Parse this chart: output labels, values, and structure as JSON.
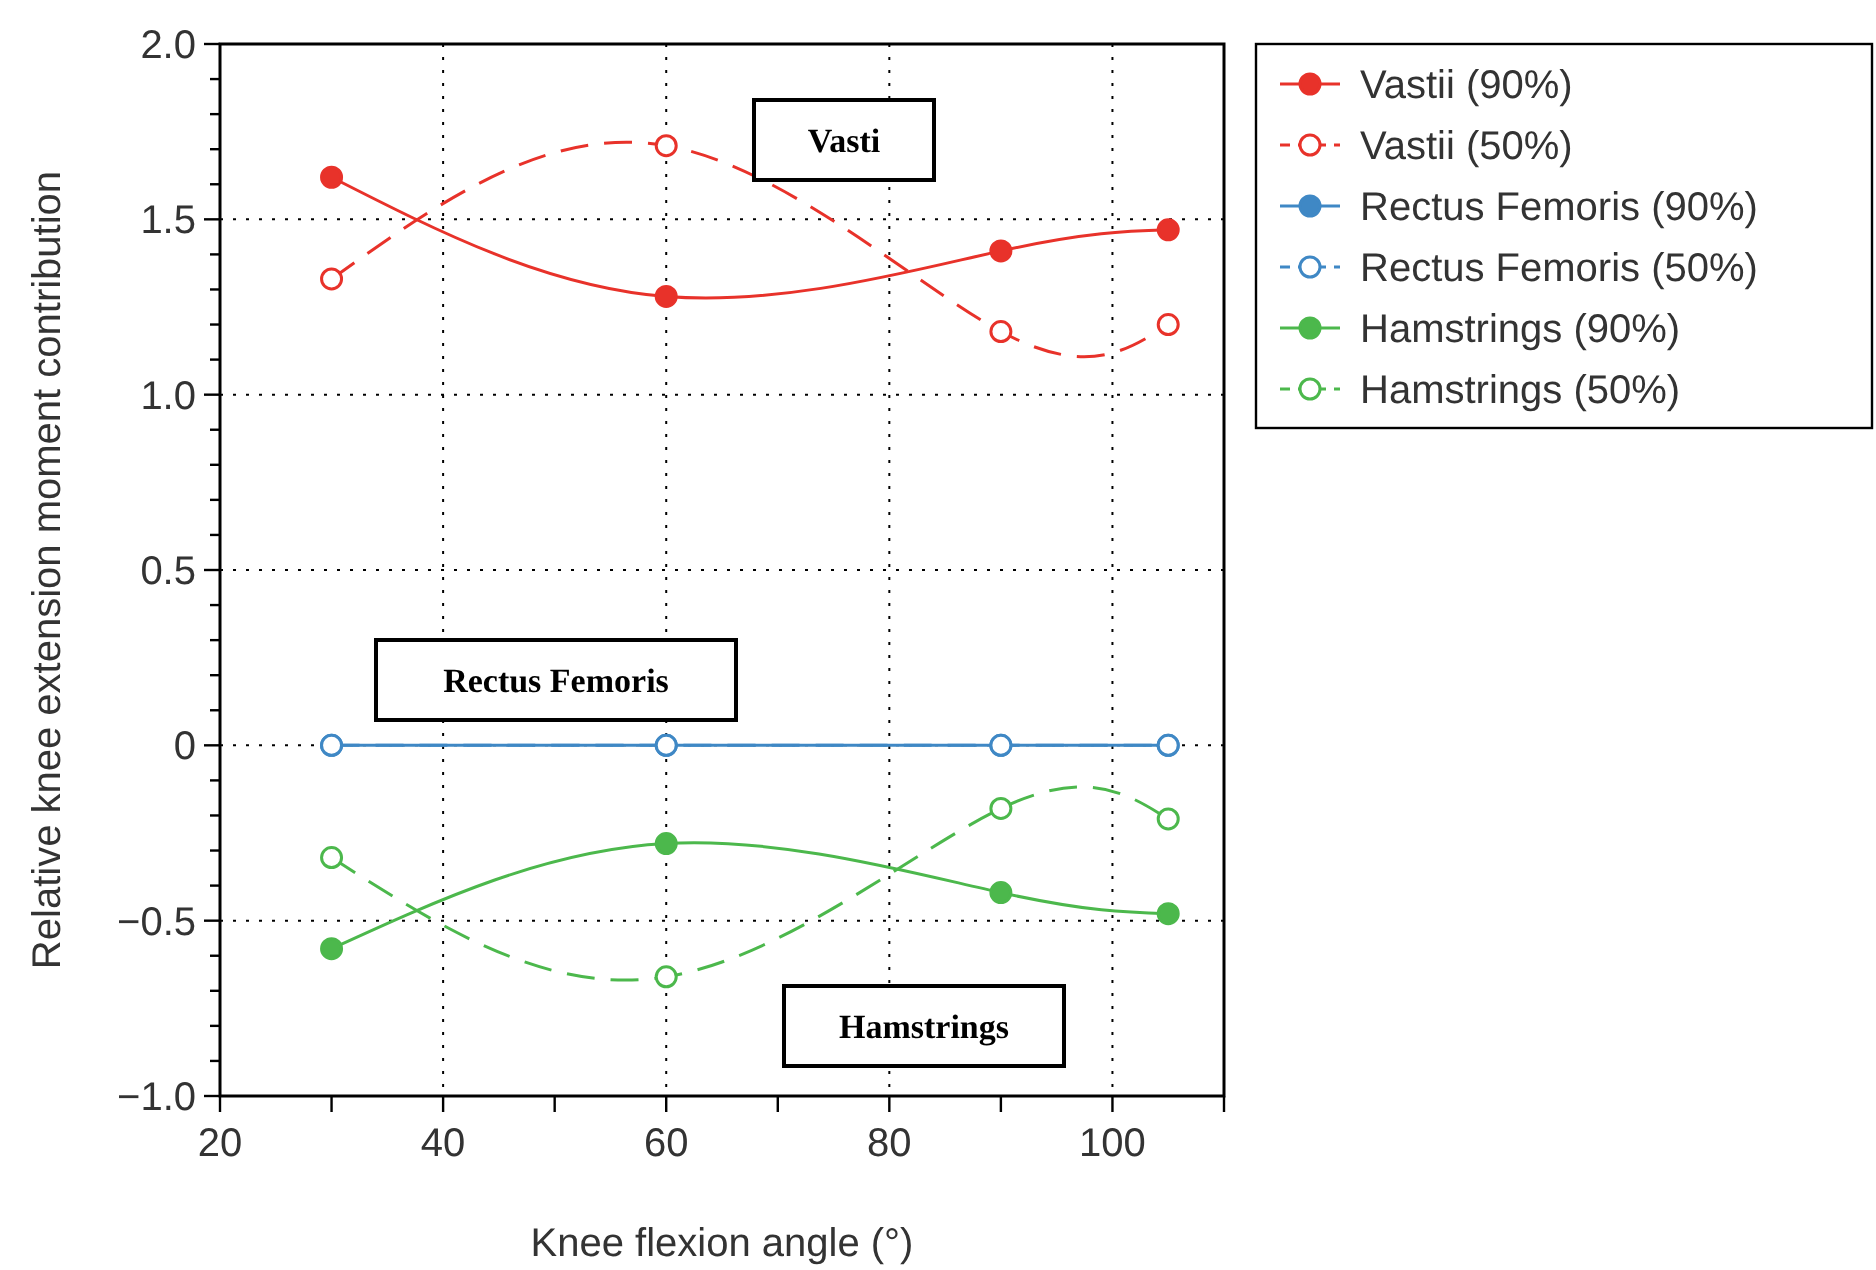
{
  "chart_data": {
    "type": "line",
    "xlabel": "Knee flexion angle (°)",
    "ylabel": "Relative knee extension moment contribution",
    "x": [
      30,
      60,
      90,
      105
    ],
    "series": [
      {
        "name": "Vastii (90%)",
        "color": "#e8322a",
        "values": [
          1.62,
          1.28,
          1.41,
          1.47
        ],
        "line_style": "solid"
      },
      {
        "name": "Vastii (50%)",
        "color": "#e8322a",
        "values": [
          1.33,
          1.71,
          1.18,
          1.2
        ],
        "line_style": "dashed"
      },
      {
        "name": "Rectus Femoris (90%)",
        "color": "#3f88c5",
        "values": [
          0,
          0,
          0,
          0
        ],
        "line_style": "solid"
      },
      {
        "name": "Rectus Femoris (50%)",
        "color": "#3f88c5",
        "values": [
          0,
          0,
          0,
          0
        ],
        "line_style": "dashed"
      },
      {
        "name": "Hamstrings (90%)",
        "color": "#4cb84c",
        "values": [
          -0.58,
          -0.28,
          -0.42,
          -0.48
        ],
        "line_style": "solid"
      },
      {
        "name": "Hamstrings (50%)",
        "color": "#4cb84c",
        "values": [
          -0.32,
          -0.66,
          -0.18,
          -0.21
        ],
        "line_style": "dashed"
      }
    ],
    "annotations": [
      "Vasti",
      "Rectus Femoris",
      "Hamstrings"
    ],
    "xlim": [
      20,
      110
    ],
    "xticks": [
      20,
      {
        "value": 30,
        "label": null
      },
      40,
      {
        "value": 50,
        "label": null
      },
      60,
      {
        "value": 70,
        "label": null
      },
      80,
      {
        "value": 90,
        "label": null
      },
      100,
      {
        "value": 110,
        "label": null
      }
    ],
    "ylim": [
      -1,
      2
    ],
    "yticks": [
      {
        "value": -1,
        "label": "−1.0"
      },
      {
        "value": -0.9,
        "label": null
      },
      {
        "value": -0.8,
        "label": null
      },
      {
        "value": -0.7,
        "label": null
      },
      {
        "value": -0.6,
        "label": null
      },
      {
        "value": -0.5,
        "label": "−0.5"
      },
      {
        "value": -0.4,
        "label": null
      },
      {
        "value": -0.3,
        "label": null
      },
      {
        "value": -0.2,
        "label": null
      },
      {
        "value": -0.1,
        "label": null
      },
      0,
      {
        "value": 0.1,
        "label": null
      },
      {
        "value": 0.2,
        "label": null
      },
      {
        "value": 0.3,
        "label": null
      },
      {
        "value": 0.4,
        "label": null
      },
      0.5,
      {
        "value": 0.6,
        "label": null
      },
      {
        "value": 0.7,
        "label": null
      },
      {
        "value": 0.8,
        "label": null
      },
      {
        "value": 0.9,
        "label": null
      },
      {
        "value": 1,
        "label": "1.0"
      },
      {
        "value": 1.1,
        "label": null
      },
      {
        "value": 1.2,
        "label": null
      },
      {
        "value": 1.3,
        "label": null
      },
      {
        "value": 1.4,
        "label": null
      },
      1.5,
      {
        "value": 1.6,
        "label": null
      },
      {
        "value": 1.7,
        "label": null
      },
      {
        "value": 1.8,
        "label": null
      },
      {
        "value": 1.9,
        "label": null
      },
      {
        "value": 2,
        "label": "2.0"
      }
    ],
    "grid": true,
    "legend": "top right",
    "marker": "circle"
  }
}
